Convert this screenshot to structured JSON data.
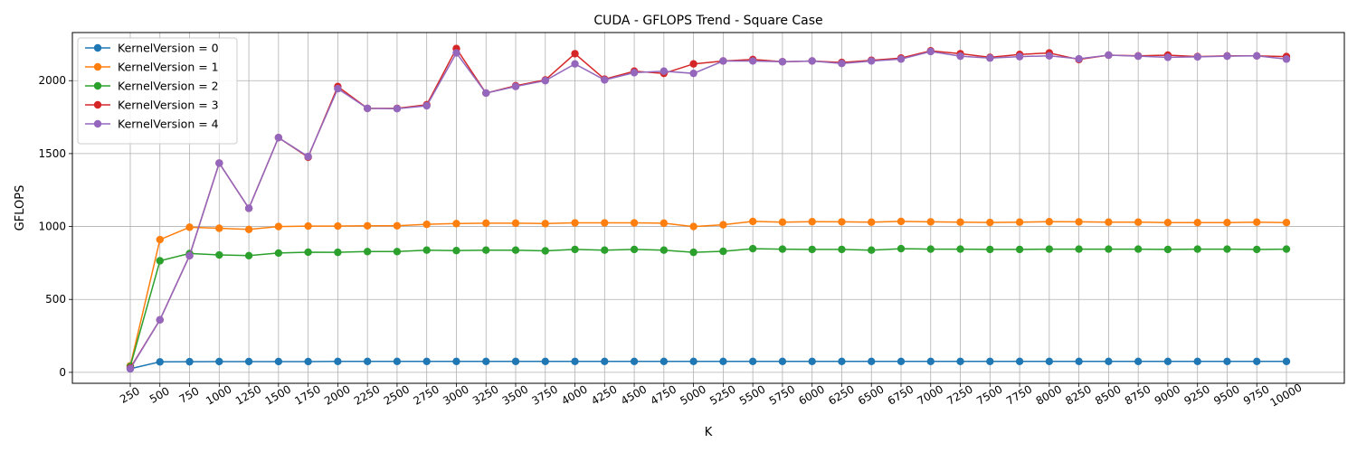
{
  "chart_data": {
    "type": "line",
    "title": "CUDA - GFLOPS Trend - Square Case",
    "xlabel": "K",
    "ylabel": "GFLOPS",
    "x": [
      250,
      500,
      750,
      1000,
      1250,
      1500,
      1750,
      2000,
      2250,
      2500,
      2750,
      3000,
      3250,
      3500,
      3750,
      4000,
      4250,
      4500,
      4750,
      5000,
      5250,
      5500,
      5750,
      6000,
      6250,
      6500,
      6750,
      7000,
      7250,
      7500,
      7750,
      8000,
      8250,
      8500,
      8750,
      9000,
      9250,
      9500,
      9750,
      10000
    ],
    "x_tick_labels": [
      "250",
      "500",
      "750",
      "1000",
      "1250",
      "1500",
      "1750",
      "2000",
      "2250",
      "2500",
      "2750",
      "3000",
      "3250",
      "3500",
      "3750",
      "4000",
      "4250",
      "4500",
      "4750",
      "5000",
      "5250",
      "5500",
      "5750",
      "6000",
      "6250",
      "6500",
      "6750",
      "7000",
      "7250",
      "7500",
      "7750",
      "8000",
      "8250",
      "8500",
      "8750",
      "9000",
      "9250",
      "9500",
      "9750",
      "10000"
    ],
    "y_ticks": [
      0,
      500,
      1000,
      1500,
      2000
    ],
    "y_tick_labels": [
      "0",
      "500",
      "1000",
      "1500",
      "2000"
    ],
    "ylim": [
      -75,
      2330
    ],
    "grid": true,
    "legend_position": "upper-left",
    "series": [
      {
        "name": "KernelVersion = 0",
        "color": "#1f77b4",
        "values": [
          25,
          72,
          73,
          74,
          74,
          74,
          74,
          75,
          75,
          75,
          75,
          75,
          75,
          75,
          75,
          75,
          75,
          75,
          75,
          75,
          75,
          75,
          75,
          75,
          75,
          75,
          75,
          75,
          75,
          75,
          75,
          75,
          75,
          75,
          75,
          75,
          75,
          75,
          75,
          75
        ]
      },
      {
        "name": "KernelVersion = 1",
        "color": "#ff7f0e",
        "values": [
          45,
          910,
          995,
          988,
          980,
          1000,
          1003,
          1003,
          1005,
          1005,
          1015,
          1020,
          1023,
          1023,
          1020,
          1025,
          1025,
          1025,
          1023,
          1000,
          1012,
          1035,
          1030,
          1033,
          1032,
          1030,
          1035,
          1032,
          1030,
          1028,
          1030,
          1033,
          1032,
          1030,
          1030,
          1027,
          1027,
          1027,
          1030,
          1027
        ]
      },
      {
        "name": "KernelVersion = 2",
        "color": "#2ca02c",
        "values": [
          40,
          765,
          815,
          805,
          800,
          818,
          824,
          823,
          828,
          828,
          838,
          835,
          838,
          838,
          833,
          843,
          838,
          843,
          838,
          823,
          830,
          848,
          845,
          843,
          843,
          838,
          848,
          845,
          845,
          843,
          843,
          845,
          845,
          845,
          845,
          843,
          845,
          845,
          843,
          845
        ]
      },
      {
        "name": "KernelVersion = 3",
        "color": "#d62728",
        "values": [
          30,
          360,
          800,
          1435,
          1125,
          1610,
          1475,
          1960,
          1810,
          1810,
          1835,
          2220,
          1915,
          1965,
          2005,
          2185,
          2010,
          2065,
          2050,
          2115,
          2135,
          2145,
          2130,
          2135,
          2125,
          2140,
          2155,
          2205,
          2185,
          2160,
          2180,
          2190,
          2145,
          2175,
          2170,
          2175,
          2165,
          2170,
          2170,
          2165
        ]
      },
      {
        "name": "KernelVersion = 4",
        "color": "#9467bd",
        "values": [
          25,
          360,
          800,
          1435,
          1125,
          1610,
          1480,
          1945,
          1810,
          1808,
          1828,
          2190,
          1915,
          1960,
          2000,
          2115,
          2005,
          2055,
          2065,
          2050,
          2135,
          2135,
          2130,
          2135,
          2118,
          2135,
          2148,
          2200,
          2168,
          2155,
          2165,
          2170,
          2150,
          2175,
          2168,
          2160,
          2163,
          2168,
          2170,
          2148
        ]
      }
    ]
  }
}
